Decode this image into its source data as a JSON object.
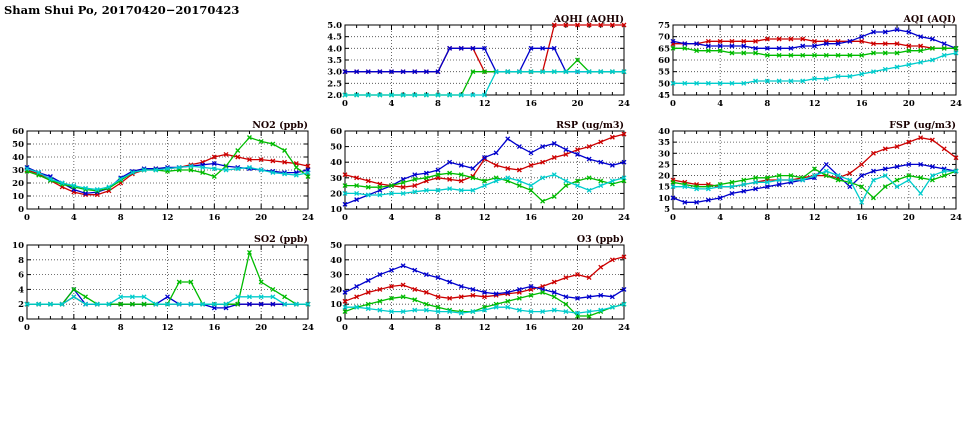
{
  "page_title": "Sham Shui Po, 20170420−20170423",
  "series_colors": {
    "red": "#cc0000",
    "blue": "#0000cc",
    "green": "#00bb00",
    "cyan": "#00cccc"
  },
  "x_axis": {
    "min": 0,
    "max": 24,
    "major_ticks": [
      0,
      4,
      8,
      12,
      16,
      20,
      24
    ],
    "minor_step": 1
  },
  "chart_data": [
    {
      "type": "line",
      "title": "AQHI (AQHI)",
      "ylim": [
        2,
        5
      ],
      "yticks": [
        2,
        2.5,
        3,
        3.5,
        4,
        4.5,
        5
      ],
      "ytick_labels": [
        "2.0",
        "2.5",
        "3.0",
        "3.5",
        "4.0",
        "4.5",
        "5.0"
      ],
      "xlabel": "",
      "ylabel": "",
      "grid": true,
      "legend": "none",
      "series": [
        {
          "name": "red",
          "values": [
            3,
            3,
            3,
            3,
            3,
            3,
            3,
            3,
            3,
            4,
            4,
            4,
            3,
            3,
            3,
            3,
            3,
            3,
            5,
            5,
            5,
            5,
            5,
            5,
            5
          ]
        },
        {
          "name": "blue",
          "values": [
            3,
            3,
            3,
            3,
            3,
            3,
            3,
            3,
            3,
            4,
            4,
            4,
            4,
            3,
            3,
            3,
            4,
            4,
            4,
            3,
            3,
            3,
            3,
            3,
            3
          ]
        },
        {
          "name": "green",
          "values": [
            2,
            2,
            2,
            2,
            2,
            2,
            2,
            2,
            2,
            2,
            2,
            3,
            3,
            3,
            3,
            3,
            3,
            3,
            3,
            3,
            3.5,
            3,
            3,
            3,
            3
          ]
        },
        {
          "name": "cyan",
          "values": [
            2,
            2,
            2,
            2,
            2,
            2,
            2,
            2,
            2,
            2,
            2,
            2,
            2,
            3,
            3,
            3,
            3,
            3,
            3,
            3,
            3,
            3,
            3,
            3,
            3
          ]
        }
      ]
    },
    {
      "type": "line",
      "title": "AQI (AQI)",
      "ylim": [
        45,
        75
      ],
      "yticks": [
        45,
        50,
        55,
        60,
        65,
        70,
        75
      ],
      "ytick_labels": [
        "45",
        "50",
        "55",
        "60",
        "65",
        "70",
        "75"
      ],
      "xlabel": "",
      "ylabel": "",
      "grid": true,
      "legend": "none",
      "series": [
        {
          "name": "red",
          "values": [
            67,
            67,
            67,
            68,
            68,
            68,
            68,
            68,
            69,
            69,
            69,
            69,
            68,
            68,
            68,
            68,
            68,
            67,
            67,
            67,
            66,
            66,
            65,
            65,
            65
          ]
        },
        {
          "name": "blue",
          "values": [
            68,
            67,
            67,
            66,
            66,
            66,
            66,
            65,
            65,
            65,
            65,
            66,
            66,
            67,
            67,
            68,
            70,
            72,
            72,
            73,
            72,
            70,
            69,
            67,
            65
          ]
        },
        {
          "name": "green",
          "values": [
            65,
            65,
            64,
            64,
            64,
            63,
            63,
            63,
            62,
            62,
            62,
            62,
            62,
            62,
            62,
            62,
            62,
            63,
            63,
            63,
            64,
            64,
            65,
            65,
            65
          ]
        },
        {
          "name": "cyan",
          "values": [
            50,
            50,
            50,
            50,
            50,
            50,
            50,
            51,
            51,
            51,
            51,
            51,
            52,
            52,
            53,
            53,
            54,
            55,
            56,
            57,
            58,
            59,
            60,
            62,
            63
          ]
        }
      ]
    },
    {
      "type": "line",
      "title": "NO2 (ppb)",
      "ylim": [
        0,
        60
      ],
      "yticks": [
        0,
        10,
        20,
        30,
        40,
        50,
        60
      ],
      "ytick_labels": [
        "0",
        "10",
        "20",
        "30",
        "40",
        "50",
        "60"
      ],
      "xlabel": "",
      "ylabel": "",
      "grid": true,
      "legend": "none",
      "series": [
        {
          "name": "red",
          "values": [
            30,
            27,
            22,
            17,
            13,
            11,
            11,
            14,
            20,
            27,
            30,
            31,
            31,
            32,
            34,
            36,
            40,
            42,
            40,
            38,
            38,
            37,
            36,
            35,
            33
          ]
        },
        {
          "name": "blue",
          "values": [
            32,
            28,
            25,
            20,
            15,
            12,
            13,
            16,
            24,
            29,
            31,
            31,
            32,
            32,
            33,
            34,
            35,
            33,
            32,
            31,
            30,
            29,
            28,
            28,
            30
          ]
        },
        {
          "name": "green",
          "values": [
            29,
            26,
            22,
            19,
            17,
            15,
            14,
            16,
            22,
            28,
            30,
            30,
            29,
            30,
            30,
            28,
            25,
            33,
            45,
            55,
            52,
            50,
            45,
            32,
            25
          ]
        },
        {
          "name": "cyan",
          "values": [
            31,
            28,
            23,
            20,
            18,
            16,
            15,
            17,
            23,
            28,
            30,
            30,
            31,
            32,
            33,
            32,
            31,
            30,
            31,
            32,
            30,
            28,
            27,
            26,
            28
          ]
        }
      ]
    },
    {
      "type": "line",
      "title": "RSP (ug/m3)",
      "ylim": [
        10,
        60
      ],
      "yticks": [
        10,
        20,
        30,
        40,
        50,
        60
      ],
      "ytick_labels": [
        "10",
        "20",
        "30",
        "40",
        "50",
        "60"
      ],
      "xlabel": "",
      "ylabel": "",
      "grid": true,
      "legend": "none",
      "series": [
        {
          "name": "red",
          "values": [
            32,
            30,
            28,
            26,
            25,
            24,
            25,
            28,
            30,
            29,
            28,
            31,
            42,
            38,
            36,
            35,
            38,
            40,
            43,
            45,
            48,
            50,
            53,
            56,
            58
          ]
        },
        {
          "name": "blue",
          "values": [
            13,
            16,
            19,
            22,
            25,
            29,
            32,
            33,
            35,
            40,
            38,
            36,
            43,
            46,
            55,
            50,
            46,
            50,
            52,
            48,
            45,
            42,
            40,
            38,
            40
          ]
        },
        {
          "name": "green",
          "values": [
            25,
            25,
            24,
            24,
            25,
            27,
            29,
            30,
            32,
            33,
            32,
            30,
            28,
            30,
            28,
            25,
            22,
            15,
            18,
            25,
            28,
            30,
            28,
            26,
            28
          ]
        },
        {
          "name": "cyan",
          "values": [
            20,
            20,
            19,
            19,
            20,
            20,
            21,
            22,
            22,
            23,
            22,
            22,
            25,
            28,
            30,
            28,
            25,
            30,
            32,
            28,
            25,
            22,
            25,
            28,
            30
          ]
        }
      ]
    },
    {
      "type": "line",
      "title": "FSP (ug/m3)",
      "ylim": [
        5,
        40
      ],
      "yticks": [
        5,
        10,
        15,
        20,
        25,
        30,
        35,
        40
      ],
      "ytick_labels": [
        "5",
        "10",
        "15",
        "20",
        "25",
        "30",
        "35",
        "40"
      ],
      "xlabel": "",
      "ylabel": "",
      "grid": true,
      "legend": "none",
      "series": [
        {
          "name": "red",
          "values": [
            18,
            17,
            16,
            16,
            15,
            15,
            16,
            17,
            18,
            18,
            18,
            19,
            20,
            20,
            19,
            21,
            25,
            30,
            32,
            33,
            35,
            37,
            36,
            32,
            28
          ]
        },
        {
          "name": "blue",
          "values": [
            10,
            8,
            8,
            9,
            10,
            12,
            13,
            14,
            15,
            16,
            17,
            18,
            19,
            25,
            20,
            15,
            20,
            22,
            23,
            24,
            25,
            25,
            24,
            23,
            22
          ]
        },
        {
          "name": "green",
          "values": [
            17,
            16,
            15,
            15,
            16,
            17,
            18,
            19,
            19,
            20,
            20,
            19,
            23,
            20,
            18,
            17,
            15,
            10,
            15,
            18,
            20,
            19,
            18,
            20,
            22
          ]
        },
        {
          "name": "cyan",
          "values": [
            15,
            15,
            14,
            14,
            15,
            15,
            16,
            17,
            17,
            18,
            18,
            18,
            20,
            22,
            20,
            18,
            8,
            18,
            20,
            15,
            18,
            12,
            20,
            22,
            22
          ]
        }
      ]
    },
    {
      "type": "line",
      "title": "SO2 (ppb)",
      "ylim": [
        0,
        10
      ],
      "yticks": [
        0,
        2,
        4,
        6,
        8,
        10
      ],
      "ytick_labels": [
        "0",
        "2",
        "4",
        "6",
        "8",
        "10"
      ],
      "xlabel": "",
      "ylabel": "",
      "grid": true,
      "legend": "none",
      "series": [
        {
          "name": "red",
          "values": [
            2,
            2,
            2,
            2,
            3,
            2,
            2,
            2,
            2,
            2,
            2,
            2,
            2,
            2,
            2,
            2,
            2,
            2,
            2,
            2,
            2,
            2,
            2,
            2,
            2
          ]
        },
        {
          "name": "blue",
          "values": [
            2,
            2,
            2,
            2,
            4,
            2,
            2,
            2,
            2,
            2,
            2,
            2,
            3,
            2,
            2,
            2,
            1.5,
            1.5,
            2,
            2,
            2,
            2,
            2,
            2,
            2
          ]
        },
        {
          "name": "green",
          "values": [
            2,
            2,
            2,
            2,
            4,
            3,
            2,
            2,
            2,
            2,
            2,
            2,
            2,
            5,
            5,
            2,
            2,
            2,
            2,
            9,
            5,
            4,
            3,
            2,
            2
          ]
        },
        {
          "name": "cyan",
          "values": [
            2,
            2,
            2,
            2,
            3,
            2,
            2,
            2,
            3,
            3,
            3,
            2,
            2,
            2,
            2,
            2,
            2,
            2,
            3,
            3,
            3,
            3,
            2,
            2,
            2
          ]
        }
      ]
    },
    {
      "type": "line",
      "title": "O3 (ppb)",
      "ylim": [
        0,
        50
      ],
      "yticks": [
        0,
        10,
        20,
        30,
        40,
        50
      ],
      "ytick_labels": [
        "0",
        "10",
        "20",
        "30",
        "40",
        "50"
      ],
      "xlabel": "",
      "ylabel": "",
      "grid": true,
      "legend": "none",
      "series": [
        {
          "name": "red",
          "values": [
            12,
            15,
            18,
            20,
            22,
            23,
            20,
            18,
            15,
            14,
            15,
            16,
            15,
            16,
            17,
            18,
            20,
            22,
            25,
            28,
            30,
            28,
            35,
            40,
            42
          ]
        },
        {
          "name": "blue",
          "values": [
            18,
            22,
            26,
            30,
            33,
            36,
            33,
            30,
            28,
            25,
            22,
            20,
            18,
            17,
            18,
            20,
            22,
            20,
            18,
            15,
            14,
            15,
            16,
            15,
            20
          ]
        },
        {
          "name": "green",
          "values": [
            5,
            8,
            10,
            12,
            14,
            15,
            13,
            10,
            8,
            6,
            5,
            5,
            8,
            10,
            12,
            14,
            16,
            18,
            15,
            10,
            2,
            2,
            5,
            8,
            10
          ]
        },
        {
          "name": "cyan",
          "values": [
            8,
            8,
            7,
            6,
            5,
            5,
            6,
            6,
            5,
            5,
            4,
            5,
            6,
            8,
            8,
            6,
            5,
            5,
            6,
            5,
            4,
            5,
            6,
            8,
            10
          ]
        }
      ]
    }
  ]
}
